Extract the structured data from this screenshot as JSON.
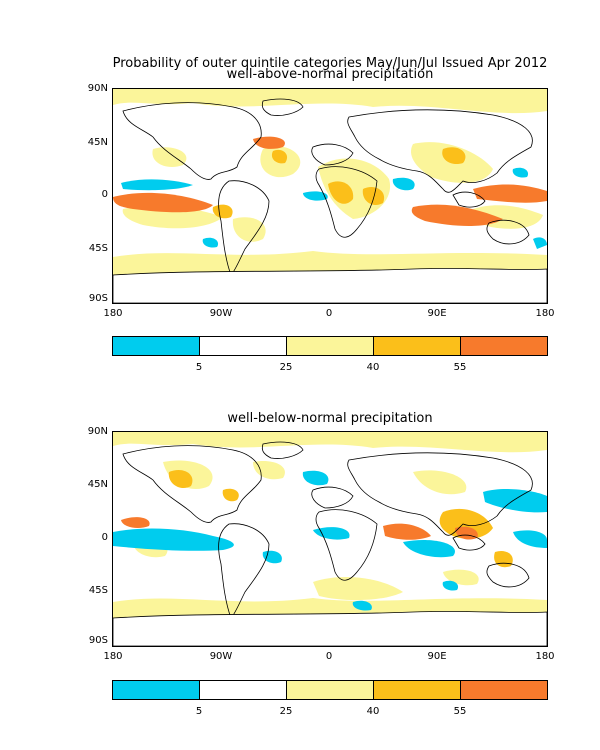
{
  "title": "Probability of outer quintile categories May/Jun/Jul Issued Apr 2012",
  "panels": [
    {
      "subtitle": "well-above-normal precipitation",
      "lat_labels": [
        "90N",
        "45N",
        "0",
        "45S",
        "90S"
      ],
      "lon_labels": [
        "180",
        "90W",
        "0",
        "90E",
        "180"
      ]
    },
    {
      "subtitle": "well-below-normal precipitation",
      "lat_labels": [
        "90N",
        "45N",
        "0",
        "45S",
        "90S"
      ],
      "lon_labels": [
        "180",
        "90W",
        "0",
        "90E",
        "180"
      ]
    }
  ],
  "colorbar": {
    "labels": [
      "5",
      "25",
      "40",
      "55"
    ],
    "colors": [
      "#00ccee",
      "#ffffff",
      "#fbf59a",
      "#fbbf1a",
      "#f77a2c"
    ]
  },
  "map_colors": {
    "light": "#fbf59a",
    "medium": "#fbbf1a",
    "high": "#f77a2c",
    "low": "#00ccee",
    "land_outline": "#000000"
  }
}
